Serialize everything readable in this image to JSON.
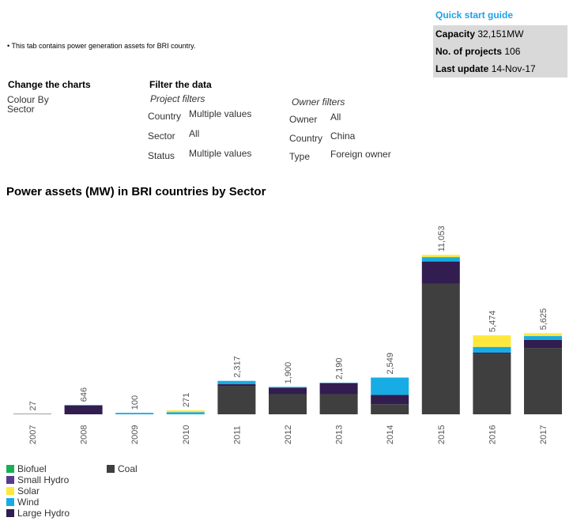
{
  "header": {
    "quick_start": "Quick start guide",
    "stats": [
      {
        "label": "Capacity",
        "value": "32,151MW"
      },
      {
        "label": "No. of projects",
        "value": "106"
      },
      {
        "label": "Last update",
        "value": "14-Nov-17"
      }
    ],
    "note": "This tab contains power generation assets for BRI country."
  },
  "controls": {
    "change_title": "Change the charts",
    "colour_by_label": "Colour By",
    "colour_by_value": "Sector",
    "filter_title": "Filter the data",
    "project_filters_title": "Project filters",
    "owner_filters_title": "Owner filters",
    "project_filters": [
      {
        "label": "Country",
        "value": "Multiple values"
      },
      {
        "label": "Sector",
        "value": "All"
      },
      {
        "label": "Status",
        "value": "Multiple values"
      }
    ],
    "owner_filters": [
      {
        "label": "Owner",
        "value": "All"
      },
      {
        "label": "Country",
        "value": "China"
      },
      {
        "label": "Type",
        "value": "Foreign owner"
      }
    ]
  },
  "colors": {
    "Biofuel": "#1aaf54",
    "Small Hydro": "#5b3a8c",
    "Solar": "#ffe83b",
    "Wind": "#17ace3",
    "Large Hydro": "#311d4f",
    "Coal": "#3f3f3f"
  },
  "chart_data": {
    "type": "bar",
    "stacked": true,
    "title": "Power assets (MW) in BRI countries by Sector",
    "categories": [
      "2007",
      "2008",
      "2009",
      "2010",
      "2011",
      "2012",
      "2013",
      "2014",
      "2015",
      "2016",
      "2017"
    ],
    "totals": [
      "27",
      "646",
      "100",
      "271",
      "2,317",
      "1,900",
      "2,190",
      "2,549",
      "11,053",
      "5,474",
      "5,625"
    ],
    "series": [
      {
        "name": "Coal",
        "values": [
          27,
          0,
          0,
          0,
          1950,
          1400,
          1400,
          700,
          9050,
          4200,
          4600
        ]
      },
      {
        "name": "Large Hydro",
        "values": [
          0,
          620,
          0,
          0,
          150,
          450,
          760,
          650,
          1550,
          80,
          560
        ]
      },
      {
        "name": "Small Hydro",
        "values": [
          0,
          0,
          0,
          0,
          0,
          0,
          0,
          0,
          0,
          0,
          0
        ]
      },
      {
        "name": "Wind",
        "values": [
          0,
          26,
          100,
          151,
          217,
          50,
          30,
          1199,
          303,
          394,
          265
        ]
      },
      {
        "name": "Solar",
        "values": [
          0,
          0,
          0,
          120,
          0,
          0,
          0,
          0,
          150,
          800,
          200
        ]
      },
      {
        "name": "Biofuel",
        "values": [
          0,
          0,
          0,
          0,
          0,
          0,
          0,
          0,
          0,
          0,
          0
        ]
      }
    ],
    "ylim": [
      0,
      12500
    ],
    "grid": false,
    "legend": {
      "col1": [
        "Biofuel",
        "Small Hydro",
        "Solar",
        "Wind",
        "Large Hydro"
      ],
      "col2": [
        "Coal"
      ]
    }
  }
}
